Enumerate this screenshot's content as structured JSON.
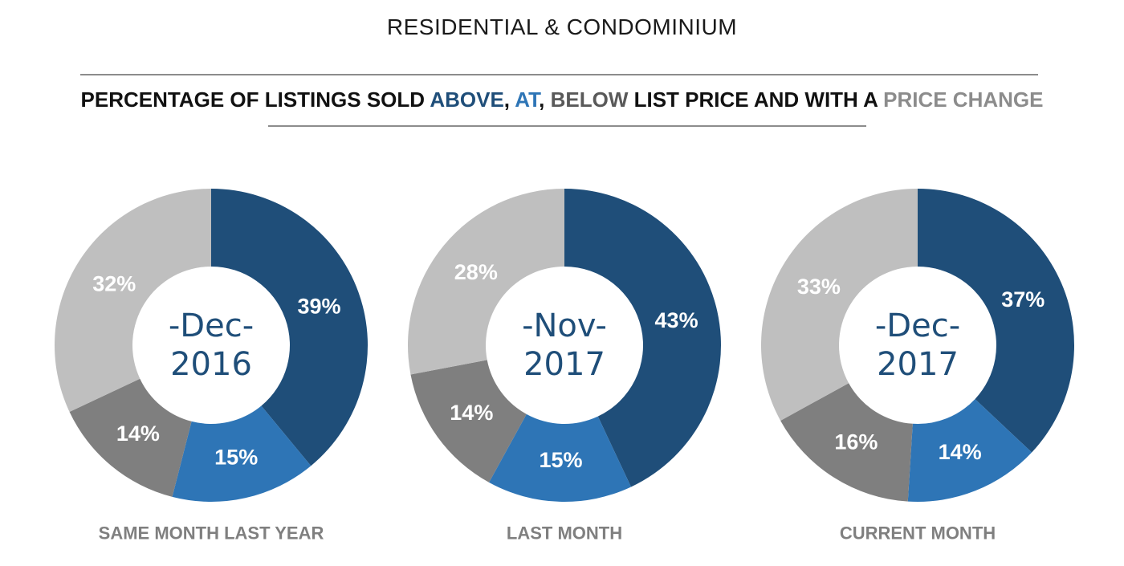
{
  "title": "RESIDENTIAL & CONDOMINIUM",
  "headline": [
    {
      "text": "PERCENTAGE OF LISTINGS SOLD ",
      "color": "#111111"
    },
    {
      "text": "ABOVE",
      "color": "#1f4e79"
    },
    {
      "text": ", ",
      "color": "#111111"
    },
    {
      "text": "AT",
      "color": "#2e75b6"
    },
    {
      "text": ", ",
      "color": "#111111"
    },
    {
      "text": "BELOW",
      "color": "#595959"
    },
    {
      "text": " LIST PRICE AND WITH A ",
      "color": "#111111"
    },
    {
      "text": "PRICE CHANGE",
      "color": "#8c8c8c"
    }
  ],
  "colors": {
    "above": "#1f4e79",
    "at": "#2e75b6",
    "below": "#7f7f7f",
    "price_change": "#bfbfbf",
    "center_text": "#1f4e79",
    "period_label": "#7f7f7f"
  },
  "chart_data": [
    {
      "type": "pie",
      "donut": true,
      "center_month": "-Dec-",
      "center_year": "2016",
      "period": "SAME MONTH LAST YEAR",
      "slices": [
        {
          "key": "above",
          "value": 39,
          "label": "39%"
        },
        {
          "key": "at",
          "value": 15,
          "label": "15%"
        },
        {
          "key": "below",
          "value": 14,
          "label": "14%"
        },
        {
          "key": "price_change",
          "value": 32,
          "label": "32%"
        }
      ]
    },
    {
      "type": "pie",
      "donut": true,
      "center_month": "-Nov-",
      "center_year": "2017",
      "period": "LAST MONTH",
      "slices": [
        {
          "key": "above",
          "value": 43,
          "label": "43%"
        },
        {
          "key": "at",
          "value": 15,
          "label": "15%"
        },
        {
          "key": "below",
          "value": 14,
          "label": "14%"
        },
        {
          "key": "price_change",
          "value": 28,
          "label": "28%"
        }
      ]
    },
    {
      "type": "pie",
      "donut": true,
      "center_month": "-Dec-",
      "center_year": "2017",
      "period": "CURRENT MONTH",
      "slices": [
        {
          "key": "above",
          "value": 37,
          "label": "37%"
        },
        {
          "key": "at",
          "value": 14,
          "label": "14%"
        },
        {
          "key": "below",
          "value": 16,
          "label": "16%"
        },
        {
          "key": "price_change",
          "value": 33,
          "label": "33%"
        }
      ]
    }
  ]
}
